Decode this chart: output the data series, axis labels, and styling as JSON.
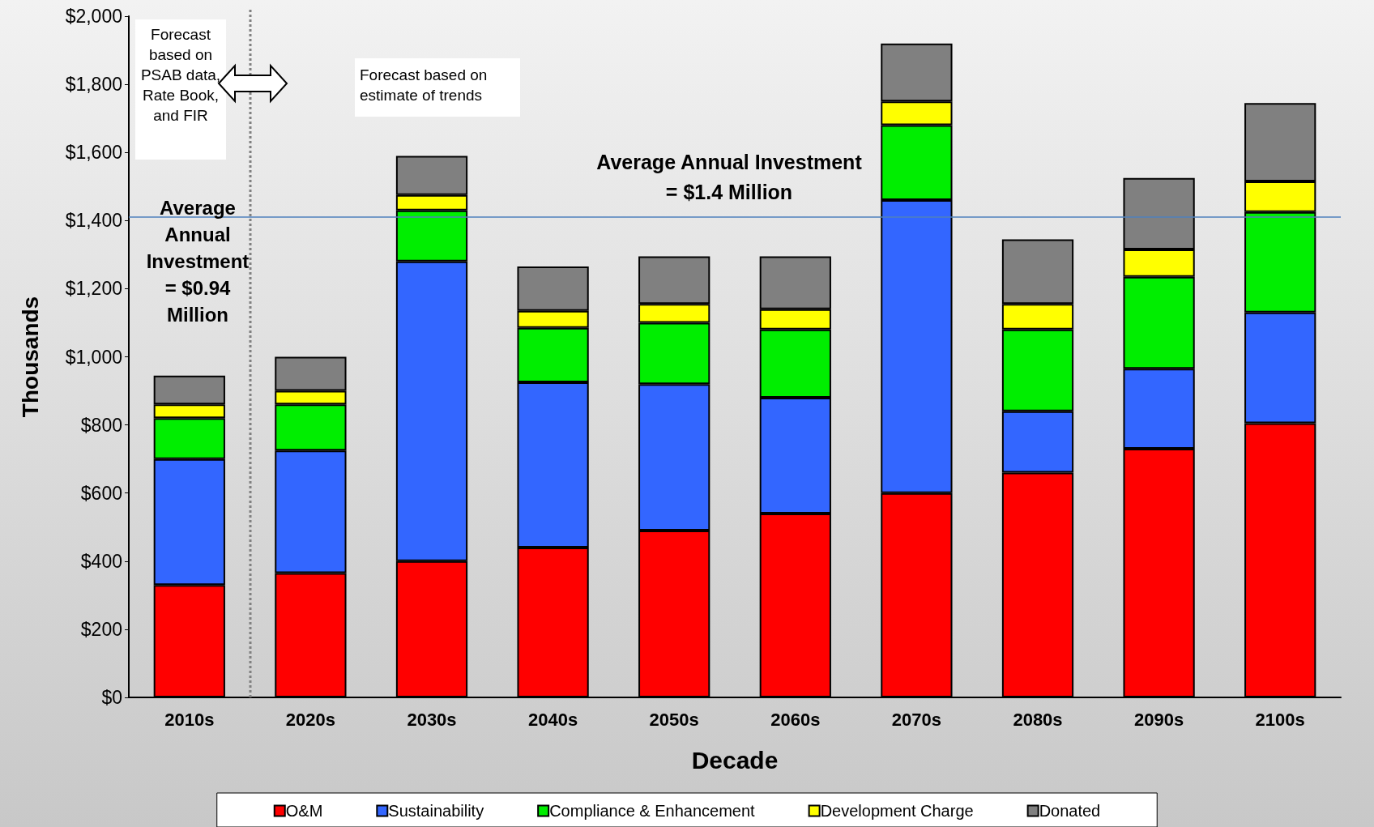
{
  "chart_data": {
    "type": "bar",
    "stacked": true,
    "xlabel": "Decade",
    "ylabel": "Thousands",
    "categories": [
      "2010s",
      "2020s",
      "2030s",
      "2040s",
      "2050s",
      "2060s",
      "2070s",
      "2080s",
      "2090s",
      "2100s"
    ],
    "series": [
      {
        "name": "O&M",
        "color": "#ff0000",
        "values": [
          330,
          365,
          400,
          440,
          490,
          540,
          600,
          660,
          730,
          805
        ]
      },
      {
        "name": "Sustainability",
        "color": "#3366ff",
        "values": [
          370,
          360,
          880,
          485,
          430,
          340,
          860,
          180,
          235,
          325
        ]
      },
      {
        "name": "Compliance & Enhancement",
        "color": "#00ee00",
        "values": [
          120,
          135,
          150,
          160,
          180,
          200,
          220,
          240,
          270,
          295
        ]
      },
      {
        "name": "Development Charge",
        "color": "#ffff00",
        "values": [
          40,
          40,
          45,
          50,
          55,
          60,
          70,
          75,
          80,
          90
        ]
      },
      {
        "name": "Donated",
        "color": "#808080",
        "values": [
          85,
          100,
          115,
          130,
          140,
          155,
          170,
          190,
          210,
          230
        ]
      }
    ],
    "ylim": [
      0,
      2000
    ],
    "yticks": [
      {
        "value": 0,
        "label": "$0"
      },
      {
        "value": 200,
        "label": "$200"
      },
      {
        "value": 400,
        "label": "$400"
      },
      {
        "value": 600,
        "label": "$600"
      },
      {
        "value": 800,
        "label": "$800"
      },
      {
        "value": 1000,
        "label": "$1,000"
      },
      {
        "value": 1200,
        "label": "$1,200"
      },
      {
        "value": 1400,
        "label": "$1,400"
      },
      {
        "value": 1600,
        "label": "$1,600"
      },
      {
        "value": 1800,
        "label": "$1,800"
      },
      {
        "value": 2000,
        "label": "$2,000"
      }
    ],
    "ref_lines": [
      {
        "axis": "y",
        "value": 1410,
        "color": "#4f81bd",
        "line_style": "solid"
      }
    ],
    "annotations": [
      "Forecast based on PSAB data, Rate Book, and FIR",
      "Forecast based on estimate of trends",
      "Average Annual Investment = $0.94 Million",
      "Average Annual Investment\n= $1.4 Million"
    ],
    "legend": "bottom",
    "grid": false
  }
}
